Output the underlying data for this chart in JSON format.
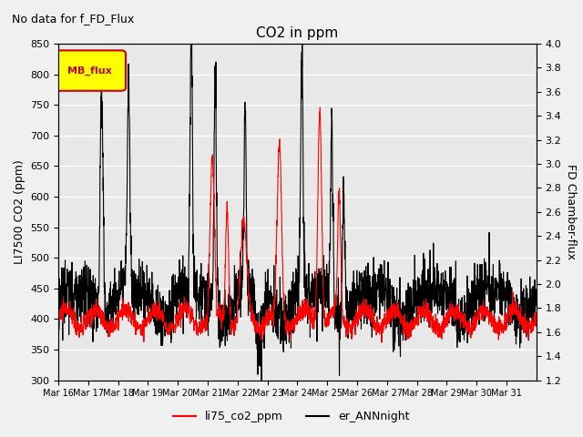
{
  "title": "CO2 in ppm",
  "suptitle": "No data for f_FD_Flux",
  "ylabel_left": "LI7500 CO2 (ppm)",
  "ylabel_right": "FD Chamber-flux",
  "ylim_left": [
    300,
    850
  ],
  "ylim_right": [
    1.2,
    4.0
  ],
  "yticks_left": [
    300,
    350,
    400,
    450,
    500,
    550,
    600,
    650,
    700,
    750,
    800,
    850
  ],
  "yticks_right": [
    1.2,
    1.4,
    1.6,
    1.8,
    2.0,
    2.2,
    2.4,
    2.6,
    2.8,
    3.0,
    3.2,
    3.4,
    3.6,
    3.8,
    4.0
  ],
  "xtick_labels": [
    "Mar 16",
    "Mar 17",
    "Mar 18",
    "Mar 19",
    "Mar 20",
    "Mar 21",
    "Mar 22",
    "Mar 23",
    "Mar 24",
    "Mar 25",
    "Mar 26",
    "Mar 27",
    "Mar 28",
    "Mar 29",
    "Mar 30",
    "Mar 31"
  ],
  "line_red_color": "#ff0000",
  "line_black_color": "#000000",
  "legend_label_red": "li75_co2_ppm",
  "legend_label_black": "er_ANNnight",
  "legend_box_label": "MB_flux",
  "legend_box_facecolor": "#ffff00",
  "legend_box_edgecolor": "#cc0000",
  "background_color": "#e8e8e8",
  "grid_color": "#ffffff"
}
